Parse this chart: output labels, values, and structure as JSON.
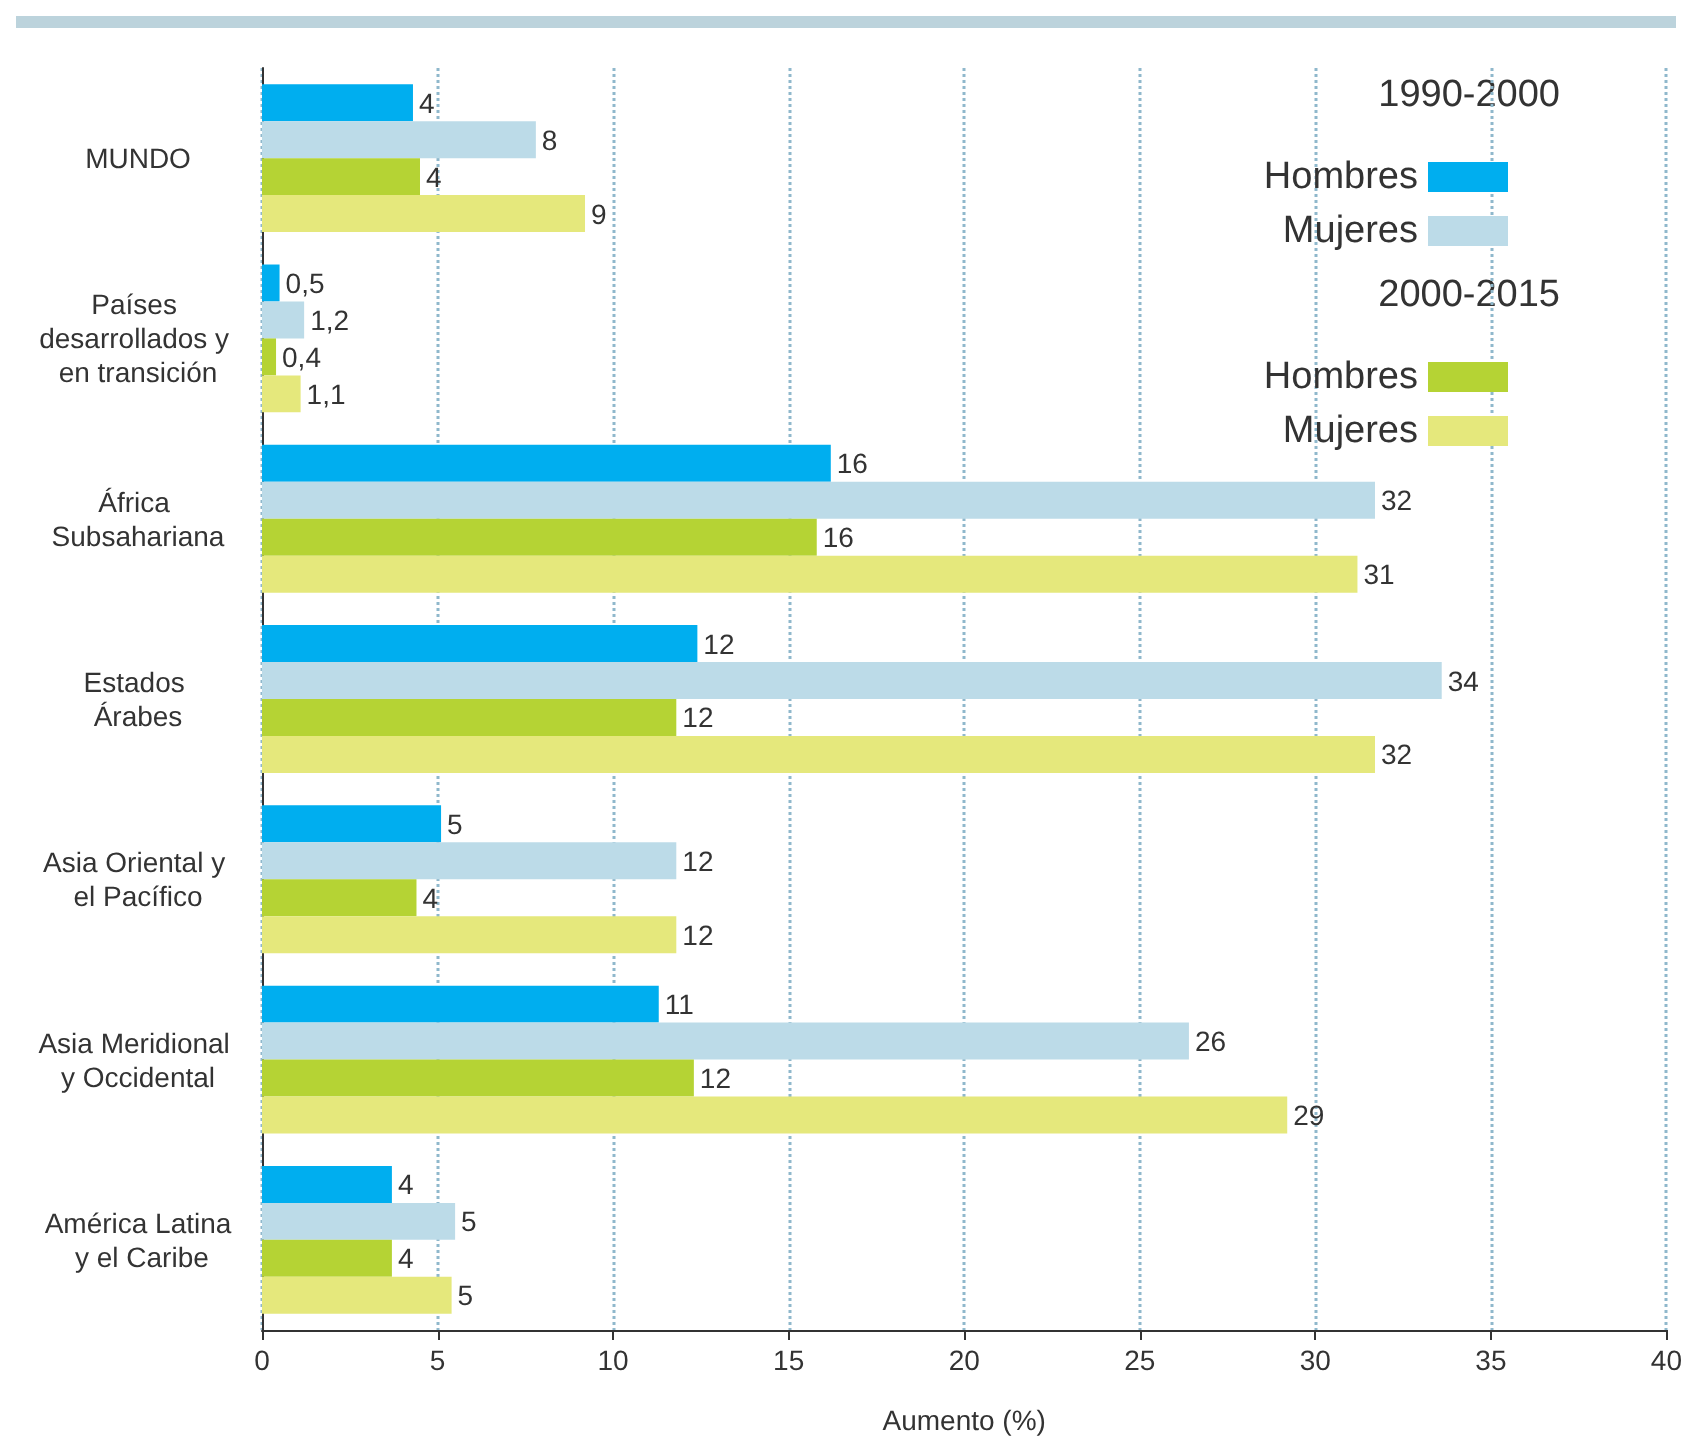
{
  "chart_data": {
    "type": "bar",
    "orientation": "horizontal",
    "xlabel": "Aumento (%)",
    "categories": [
      "MUNDO",
      "Países desarrollados y en transición",
      "África Subsahariana",
      "Estados Árabes",
      "Asia Oriental y el Pacífico",
      "Asia Meridional y Occidental",
      "América Latina y el Caribe"
    ],
    "series": [
      {
        "name": "Hombres",
        "color": "#00aeef",
        "values": [
          4.3,
          0.5,
          16.2,
          12.4,
          5.1,
          11.3,
          3.7
        ],
        "value_labels": [
          "4",
          "0,5",
          "16",
          "12",
          "5",
          "11",
          "4"
        ]
      },
      {
        "name": "Mujeres",
        "color": "#bcdbe8",
        "values": [
          7.8,
          1.2,
          31.7,
          33.6,
          11.8,
          26.4,
          5.5
        ],
        "value_labels": [
          "8",
          "1,2",
          "32",
          "34",
          "12",
          "26",
          "5"
        ]
      },
      {
        "name": "Hombres",
        "color": "#b5d334",
        "values": [
          4.5,
          0.4,
          15.8,
          11.8,
          4.4,
          12.3,
          3.7
        ],
        "value_labels": [
          "4",
          "0,4",
          "16",
          "12",
          "4",
          "12",
          "4"
        ]
      },
      {
        "name": "Mujeres",
        "color": "#e5e87c",
        "values": [
          9.2,
          1.1,
          31.2,
          31.7,
          11.8,
          29.2,
          5.4
        ],
        "value_labels": [
          "9",
          "1,1",
          "31",
          "32",
          "12",
          "29",
          "5"
        ]
      }
    ],
    "annotations": [
      "1990-2000",
      "2000-2015"
    ],
    "xlim": [
      0,
      40
    ],
    "xticks": [
      0,
      5,
      10,
      15,
      20,
      25,
      30,
      35,
      40
    ],
    "grid": "x",
    "legend": "top right"
  }
}
